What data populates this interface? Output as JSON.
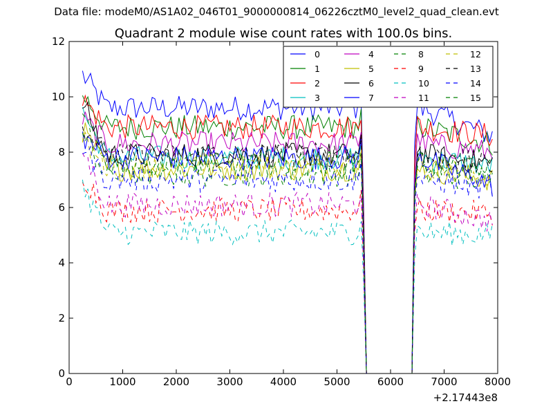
{
  "header": {
    "data_file": "Data file: modeM0/AS1A02_046T01_9000000814_06226cztM0_level2_quad_clean.evt"
  },
  "chart_data": {
    "type": "line",
    "title": "Quadrant 2 module wise count rates with 100.0s bins.",
    "xlabel": "",
    "ylabel": "",
    "x_offset_label": "+2.17443e8",
    "xlim": [
      0,
      8000
    ],
    "ylim": [
      0,
      12
    ],
    "xticks": [
      0,
      1000,
      2000,
      3000,
      4000,
      5000,
      6000,
      7000,
      8000
    ],
    "yticks": [
      0,
      2,
      4,
      6,
      8,
      10,
      12
    ],
    "grid": false,
    "legend_position": "top-right",
    "legend_columns": 4,
    "gap": {
      "start": 5550,
      "end": 6400
    },
    "series": [
      {
        "name": "0",
        "color": "#0000ff",
        "dash": "solid",
        "level": 9.6,
        "start": 10.8,
        "end": 8.6
      },
      {
        "name": "1",
        "color": "#008000",
        "dash": "solid",
        "level": 8.9,
        "start": 10.1,
        "end": 8.3
      },
      {
        "name": "2",
        "color": "#ff0000",
        "dash": "solid",
        "level": 8.9,
        "start": 9.9,
        "end": 8.6
      },
      {
        "name": "3",
        "color": "#00bfbf",
        "dash": "solid",
        "level": 7.8,
        "start": 9.5,
        "end": 7.5
      },
      {
        "name": "4",
        "color": "#bf00bf",
        "dash": "solid",
        "level": 8.3,
        "start": 9.2,
        "end": 8.0
      },
      {
        "name": "5",
        "color": "#bfbf00",
        "dash": "solid",
        "level": 7.4,
        "start": 8.8,
        "end": 7.0
      },
      {
        "name": "6",
        "color": "#000000",
        "dash": "solid",
        "level": 7.9,
        "start": 9.8,
        "end": 7.6
      },
      {
        "name": "7",
        "color": "#0000ff",
        "dash": "solid",
        "level": 7.8,
        "start": 8.6,
        "end": 6.8
      },
      {
        "name": "8",
        "color": "#008000",
        "dash": "dashed",
        "level": 7.2,
        "start": 8.6,
        "end": 7.0
      },
      {
        "name": "9",
        "color": "#ff0000",
        "dash": "dashed",
        "level": 5.9,
        "start": 7.2,
        "end": 5.8
      },
      {
        "name": "10",
        "color": "#00bfbf",
        "dash": "dashed",
        "level": 5.1,
        "start": 6.8,
        "end": 5.0
      },
      {
        "name": "11",
        "color": "#bf00bf",
        "dash": "dashed",
        "level": 6.1,
        "start": 8.1,
        "end": 5.5
      },
      {
        "name": "12",
        "color": "#bfbf00",
        "dash": "dashed",
        "level": 7.5,
        "start": 8.4,
        "end": 7.2
      },
      {
        "name": "13",
        "color": "#000000",
        "dash": "dashed",
        "level": 7.9,
        "start": 9.0,
        "end": 7.5
      },
      {
        "name": "14",
        "color": "#0000ff",
        "dash": "dashed",
        "level": 7.0,
        "start": 8.2,
        "end": 6.7
      },
      {
        "name": "15",
        "color": "#008000",
        "dash": "dashed",
        "level": 7.6,
        "start": 9.2,
        "end": 7.3
      }
    ]
  }
}
